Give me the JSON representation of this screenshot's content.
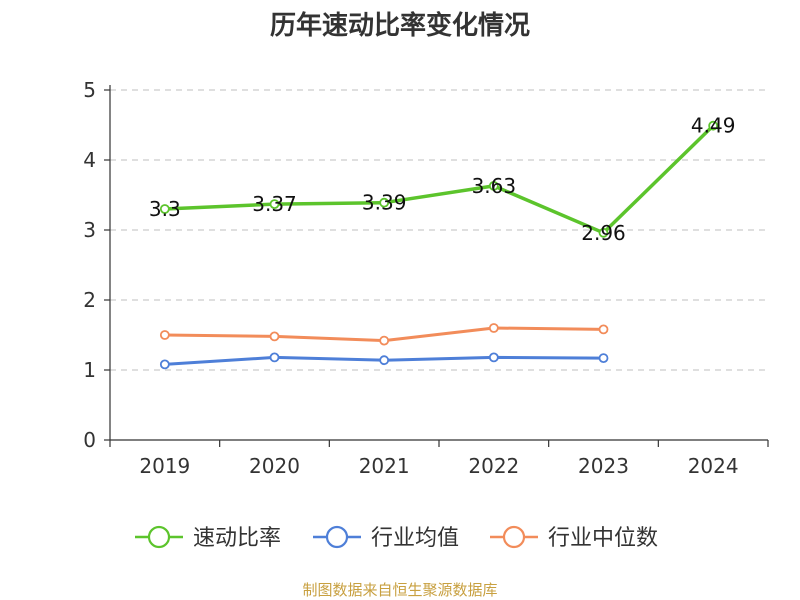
{
  "chart_data": {
    "type": "line",
    "title": "历年速动比率变化情况",
    "categories": [
      "2019",
      "2020",
      "2021",
      "2022",
      "2023",
      "2024"
    ],
    "y_ticks": [
      "0",
      "1",
      "2",
      "3",
      "4",
      "5"
    ],
    "ylim": [
      0,
      5
    ],
    "grid": "horizontal dashed",
    "legend_position": "bottom",
    "series": [
      {
        "name": "速动比率",
        "color": "#5cc42c",
        "values": [
          3.3,
          3.37,
          3.39,
          3.63,
          2.96,
          4.49
        ],
        "labels": [
          "3.3",
          "3.37",
          "3.39",
          "3.63",
          "2.96",
          "4.49"
        ]
      },
      {
        "name": "行业均值",
        "color": "#4e7fd8",
        "values": [
          1.08,
          1.18,
          1.14,
          1.18,
          1.17,
          null
        ]
      },
      {
        "name": "行业中位数",
        "color": "#f28c5a",
        "values": [
          1.5,
          1.48,
          1.42,
          1.6,
          1.58,
          null
        ]
      }
    ]
  },
  "source": "制图数据来自恒生聚源数据库"
}
